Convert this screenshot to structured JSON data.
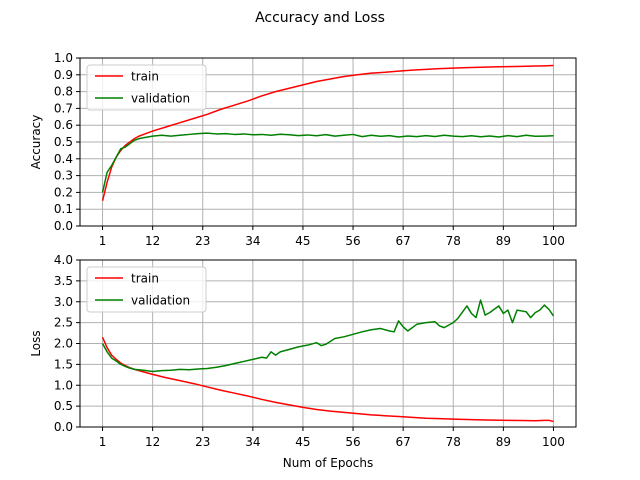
{
  "chart_data": [
    {
      "type": "line",
      "suptitle": "Accuracy and Loss",
      "title": "",
      "xlabel": "",
      "ylabel": "Accuracy",
      "xlim": [
        -3.95,
        104.95
      ],
      "ylim": [
        0,
        1.0
      ],
      "xticks": [
        1,
        12,
        23,
        34,
        45,
        56,
        67,
        78,
        89,
        100
      ],
      "yticks": [
        0.0,
        0.1,
        0.2,
        0.3,
        0.4,
        0.5,
        0.6,
        0.7,
        0.8,
        0.9,
        1.0
      ],
      "ytick_labels": [
        "0.0",
        "0.1",
        "0.2",
        "0.3",
        "0.4",
        "0.5",
        "0.6",
        "0.7",
        "0.8",
        "0.9",
        "1.0"
      ],
      "grid": true,
      "legend_position": "top-left",
      "series": [
        {
          "name": "train",
          "color": "#ff0000",
          "points": [
            [
              1,
              0.15
            ],
            [
              2,
              0.26
            ],
            [
              3,
              0.35
            ],
            [
              4,
              0.41
            ],
            [
              5,
              0.45
            ],
            [
              6,
              0.48
            ],
            [
              7,
              0.5
            ],
            [
              8,
              0.52
            ],
            [
              9,
              0.535
            ],
            [
              10,
              0.545
            ],
            [
              12,
              0.565
            ],
            [
              15,
              0.59
            ],
            [
              18,
              0.615
            ],
            [
              21,
              0.64
            ],
            [
              24,
              0.665
            ],
            [
              27,
              0.695
            ],
            [
              30,
              0.72
            ],
            [
              33,
              0.745
            ],
            [
              36,
              0.775
            ],
            [
              39,
              0.8
            ],
            [
              42,
              0.82
            ],
            [
              45,
              0.84
            ],
            [
              48,
              0.86
            ],
            [
              51,
              0.875
            ],
            [
              54,
              0.89
            ],
            [
              57,
              0.9
            ],
            [
              60,
              0.91
            ],
            [
              63,
              0.915
            ],
            [
              66,
              0.922
            ],
            [
              69,
              0.928
            ],
            [
              72,
              0.932
            ],
            [
              75,
              0.937
            ],
            [
              78,
              0.94
            ],
            [
              81,
              0.943
            ],
            [
              84,
              0.945
            ],
            [
              87,
              0.947
            ],
            [
              90,
              0.949
            ],
            [
              93,
              0.95
            ],
            [
              96,
              0.952
            ],
            [
              98,
              0.953
            ],
            [
              100,
              0.955
            ]
          ]
        },
        {
          "name": "validation",
          "color": "#008000",
          "points": [
            [
              1,
              0.2
            ],
            [
              2,
              0.32
            ],
            [
              3,
              0.36
            ],
            [
              4,
              0.41
            ],
            [
              5,
              0.46
            ],
            [
              6,
              0.47
            ],
            [
              7,
              0.49
            ],
            [
              8,
              0.51
            ],
            [
              9,
              0.52
            ],
            [
              10,
              0.525
            ],
            [
              12,
              0.535
            ],
            [
              14,
              0.54
            ],
            [
              16,
              0.535
            ],
            [
              18,
              0.54
            ],
            [
              20,
              0.545
            ],
            [
              22,
              0.55
            ],
            [
              24,
              0.553
            ],
            [
              26,
              0.548
            ],
            [
              28,
              0.55
            ],
            [
              30,
              0.545
            ],
            [
              32,
              0.548
            ],
            [
              34,
              0.543
            ],
            [
              36,
              0.545
            ],
            [
              38,
              0.54
            ],
            [
              40,
              0.546
            ],
            [
              42,
              0.543
            ],
            [
              44,
              0.538
            ],
            [
              46,
              0.542
            ],
            [
              48,
              0.537
            ],
            [
              50,
              0.544
            ],
            [
              52,
              0.535
            ],
            [
              54,
              0.54
            ],
            [
              56,
              0.545
            ],
            [
              58,
              0.532
            ],
            [
              60,
              0.54
            ],
            [
              62,
              0.534
            ],
            [
              64,
              0.538
            ],
            [
              66,
              0.53
            ],
            [
              68,
              0.536
            ],
            [
              70,
              0.532
            ],
            [
              72,
              0.538
            ],
            [
              74,
              0.533
            ],
            [
              76,
              0.54
            ],
            [
              78,
              0.535
            ],
            [
              80,
              0.532
            ],
            [
              82,
              0.537
            ],
            [
              84,
              0.531
            ],
            [
              86,
              0.536
            ],
            [
              88,
              0.53
            ],
            [
              90,
              0.538
            ],
            [
              92,
              0.532
            ],
            [
              94,
              0.54
            ],
            [
              96,
              0.534
            ],
            [
              98,
              0.535
            ],
            [
              100,
              0.537
            ]
          ]
        }
      ]
    },
    {
      "type": "line",
      "title": "",
      "xlabel": "Num of Epochs",
      "ylabel": "Loss",
      "xlim": [
        -3.95,
        104.95
      ],
      "ylim": [
        0,
        4.0
      ],
      "xticks": [
        1,
        12,
        23,
        34,
        45,
        56,
        67,
        78,
        89,
        100
      ],
      "yticks": [
        0.0,
        0.5,
        1.0,
        1.5,
        2.0,
        2.5,
        3.0,
        3.5,
        4.0
      ],
      "ytick_labels": [
        "0.0",
        "0.5",
        "1.0",
        "1.5",
        "2.0",
        "2.5",
        "3.0",
        "3.5",
        "4.0"
      ],
      "grid": true,
      "legend_position": "top-left",
      "series": [
        {
          "name": "train",
          "color": "#ff0000",
          "points": [
            [
              1,
              2.15
            ],
            [
              2,
              1.9
            ],
            [
              3,
              1.72
            ],
            [
              4,
              1.62
            ],
            [
              5,
              1.53
            ],
            [
              6,
              1.47
            ],
            [
              7,
              1.42
            ],
            [
              8,
              1.38
            ],
            [
              10,
              1.32
            ],
            [
              12,
              1.26
            ],
            [
              15,
              1.18
            ],
            [
              18,
              1.11
            ],
            [
              21,
              1.04
            ],
            [
              24,
              0.96
            ],
            [
              27,
              0.88
            ],
            [
              30,
              0.81
            ],
            [
              33,
              0.74
            ],
            [
              36,
              0.66
            ],
            [
              39,
              0.59
            ],
            [
              42,
              0.53
            ],
            [
              45,
              0.47
            ],
            [
              48,
              0.42
            ],
            [
              51,
              0.38
            ],
            [
              54,
              0.35
            ],
            [
              57,
              0.32
            ],
            [
              60,
              0.29
            ],
            [
              63,
              0.27
            ],
            [
              66,
              0.25
            ],
            [
              69,
              0.23
            ],
            [
              72,
              0.21
            ],
            [
              75,
              0.2
            ],
            [
              78,
              0.19
            ],
            [
              81,
              0.18
            ],
            [
              84,
              0.17
            ],
            [
              87,
              0.165
            ],
            [
              90,
              0.16
            ],
            [
              93,
              0.155
            ],
            [
              96,
              0.15
            ],
            [
              98,
              0.16
            ],
            [
              99,
              0.16
            ],
            [
              100,
              0.13
            ]
          ]
        },
        {
          "name": "validation",
          "color": "#008000",
          "points": [
            [
              1,
              2.0
            ],
            [
              2,
              1.8
            ],
            [
              3,
              1.65
            ],
            [
              4,
              1.58
            ],
            [
              5,
              1.5
            ],
            [
              6,
              1.45
            ],
            [
              7,
              1.41
            ],
            [
              8,
              1.38
            ],
            [
              10,
              1.36
            ],
            [
              12,
              1.33
            ],
            [
              14,
              1.35
            ],
            [
              16,
              1.36
            ],
            [
              18,
              1.38
            ],
            [
              20,
              1.37
            ],
            [
              22,
              1.39
            ],
            [
              24,
              1.4
            ],
            [
              26,
              1.43
            ],
            [
              28,
              1.47
            ],
            [
              30,
              1.52
            ],
            [
              32,
              1.57
            ],
            [
              34,
              1.62
            ],
            [
              36,
              1.67
            ],
            [
              37,
              1.65
            ],
            [
              38,
              1.8
            ],
            [
              39,
              1.72
            ],
            [
              40,
              1.8
            ],
            [
              42,
              1.86
            ],
            [
              44,
              1.92
            ],
            [
              46,
              1.96
            ],
            [
              48,
              2.02
            ],
            [
              49,
              1.95
            ],
            [
              50,
              1.98
            ],
            [
              52,
              2.12
            ],
            [
              54,
              2.16
            ],
            [
              56,
              2.22
            ],
            [
              58,
              2.28
            ],
            [
              60,
              2.33
            ],
            [
              62,
              2.36
            ],
            [
              64,
              2.3
            ],
            [
              65,
              2.28
            ],
            [
              66,
              2.54
            ],
            [
              67,
              2.4
            ],
            [
              68,
              2.3
            ],
            [
              70,
              2.46
            ],
            [
              72,
              2.5
            ],
            [
              74,
              2.52
            ],
            [
              75,
              2.42
            ],
            [
              76,
              2.38
            ],
            [
              78,
              2.5
            ],
            [
              79,
              2.6
            ],
            [
              80,
              2.75
            ],
            [
              81,
              2.9
            ],
            [
              82,
              2.72
            ],
            [
              83,
              2.62
            ],
            [
              84,
              3.04
            ],
            [
              85,
              2.68
            ],
            [
              86,
              2.74
            ],
            [
              87,
              2.82
            ],
            [
              88,
              2.9
            ],
            [
              89,
              2.72
            ],
            [
              90,
              2.8
            ],
            [
              91,
              2.5
            ],
            [
              92,
              2.8
            ],
            [
              93,
              2.78
            ],
            [
              94,
              2.76
            ],
            [
              95,
              2.62
            ],
            [
              96,
              2.74
            ],
            [
              97,
              2.8
            ],
            [
              98,
              2.92
            ],
            [
              99,
              2.82
            ],
            [
              100,
              2.66
            ]
          ]
        }
      ]
    }
  ]
}
